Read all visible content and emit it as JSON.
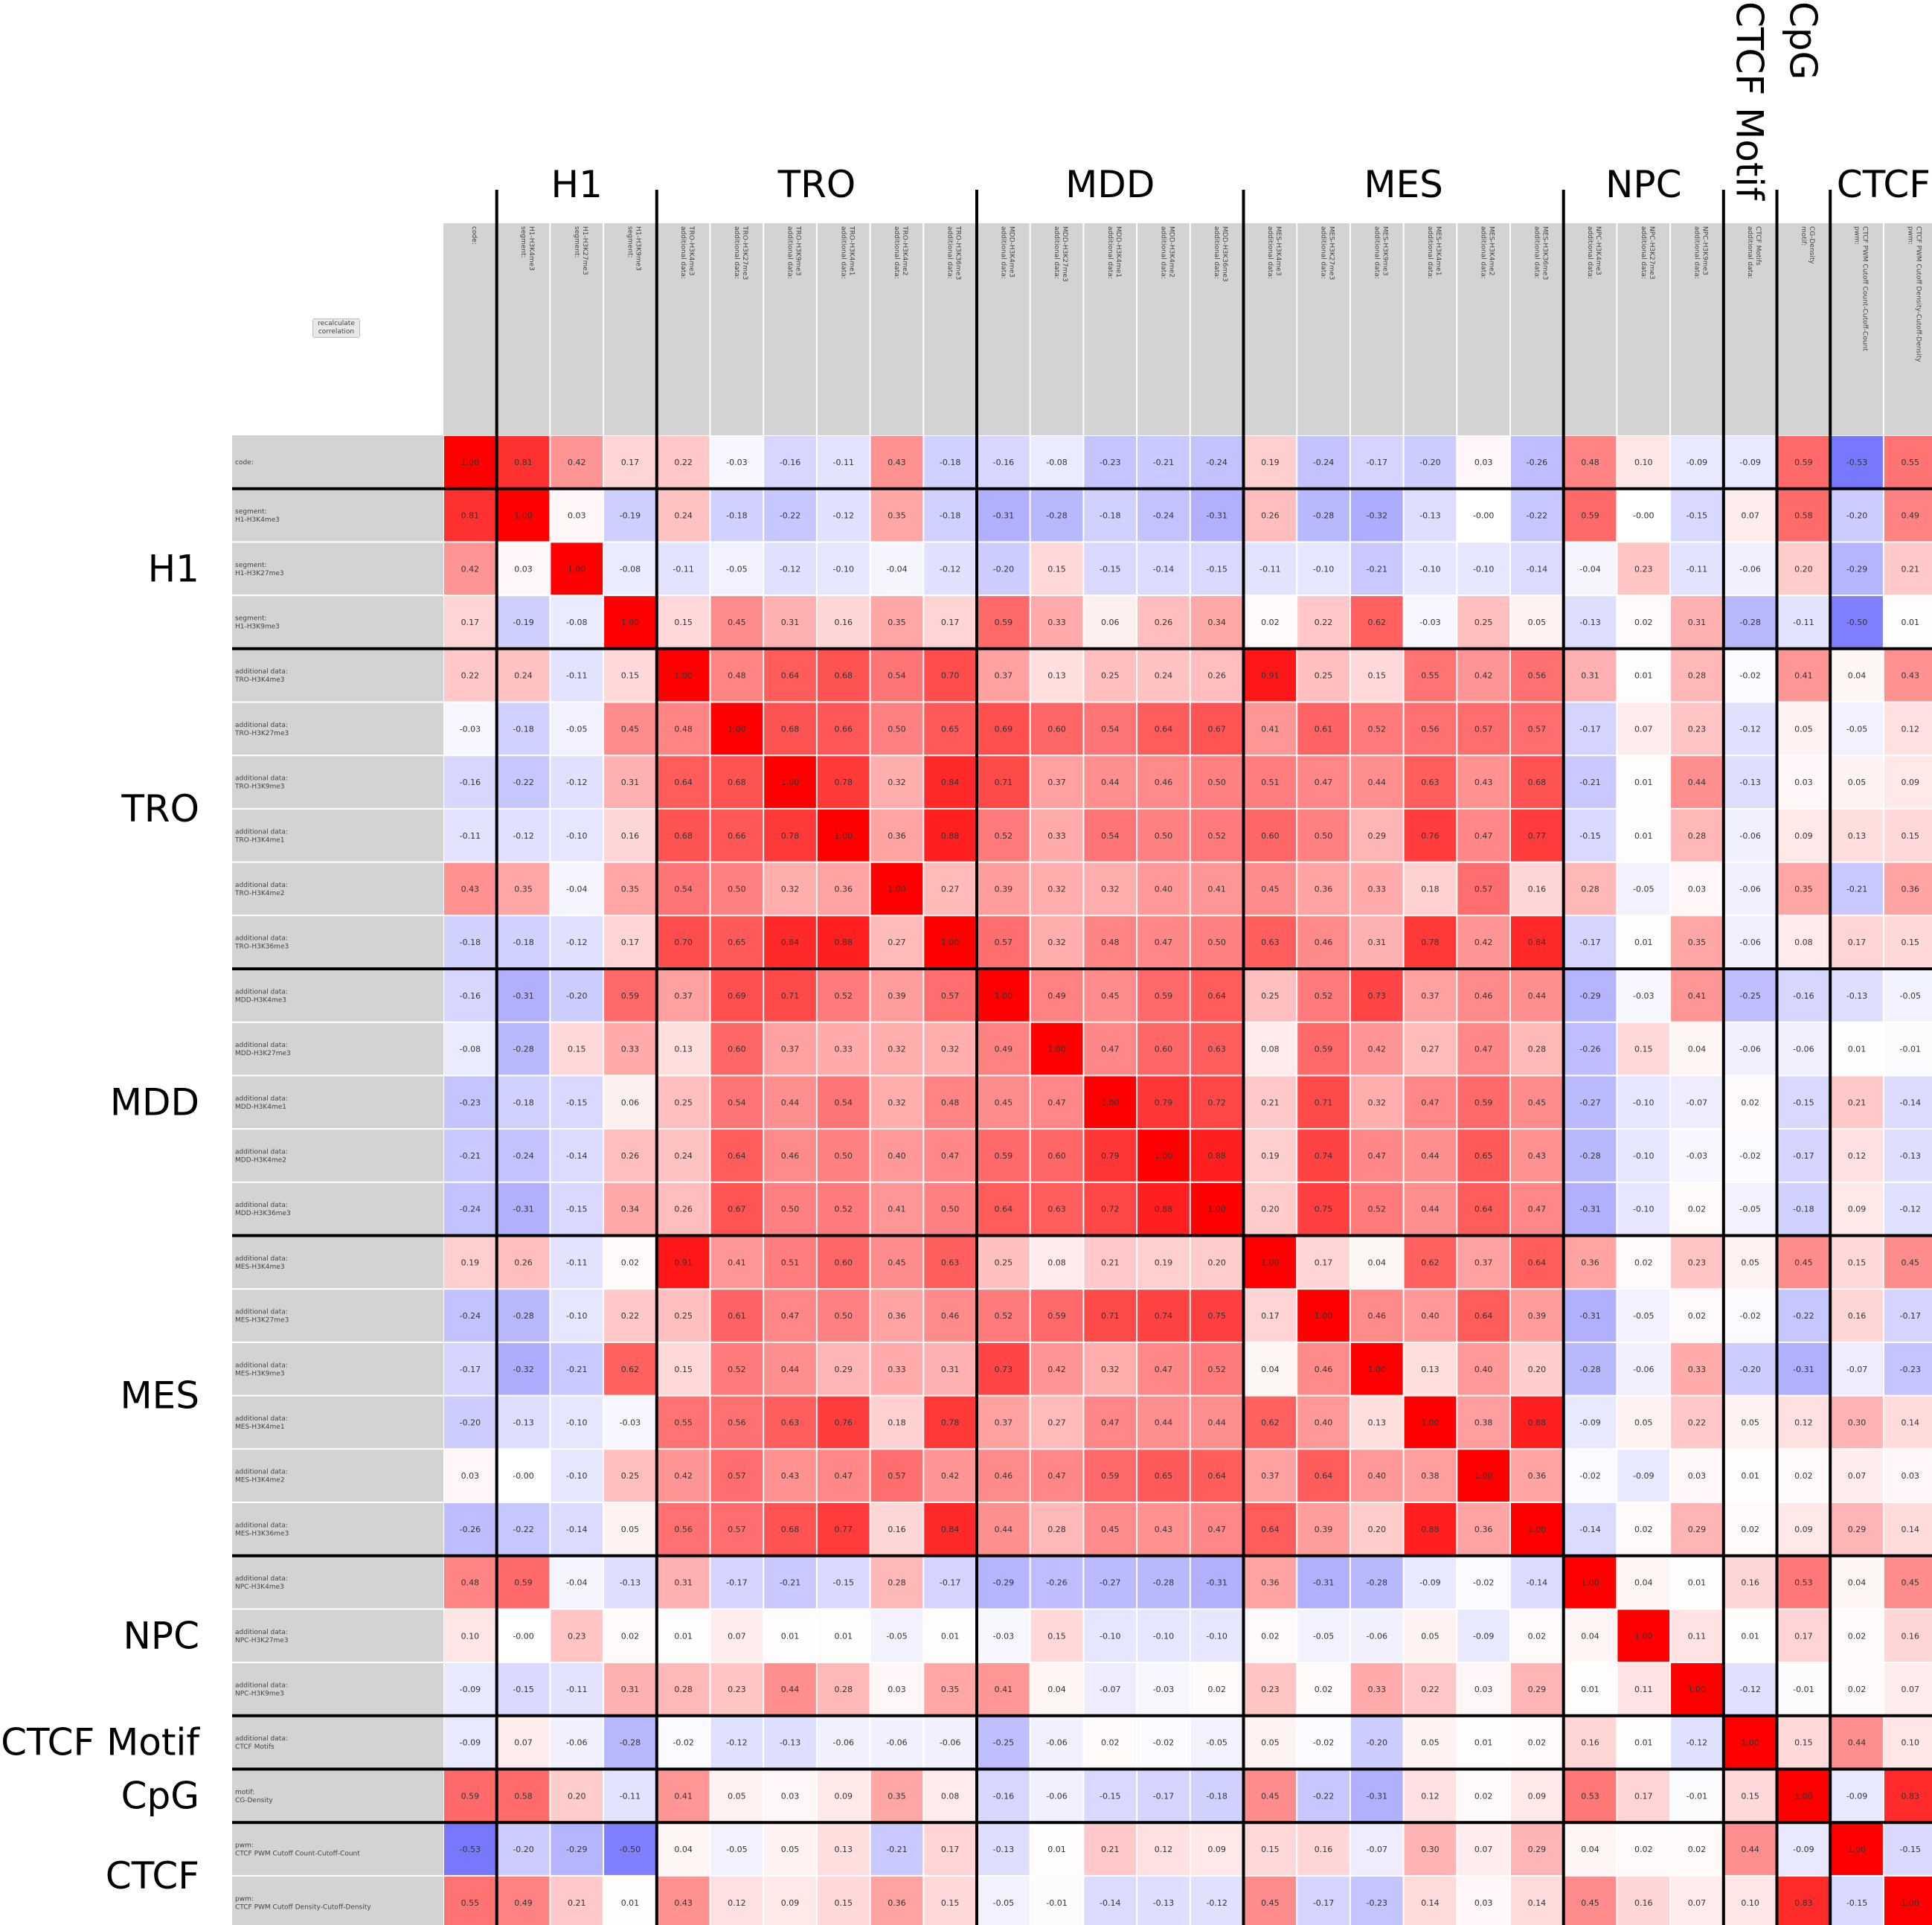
{
  "recalculate_button_label": "recalculate correlation",
  "colors": {
    "positive": "#ff0000",
    "negative": "#0000ff",
    "neutral": "#ffffff",
    "header_bg": "#d3d3d3",
    "grid_line": "#000000"
  },
  "chart_data": {
    "type": "heatmap",
    "title": "",
    "value_range": [
      -1,
      1
    ],
    "labels": [
      [
        "code:"
      ],
      [
        "segment:",
        "H1-H3K4me3"
      ],
      [
        "segment:",
        "H1-H3K27me3"
      ],
      [
        "segment:",
        "H1-H3K9me3"
      ],
      [
        "additional data:",
        "TRO-H3K4me3"
      ],
      [
        "additional data:",
        "TRO-H3K27me3"
      ],
      [
        "additional data:",
        "TRO-H3K9me3"
      ],
      [
        "additional data:",
        "TRO-H3K4me1"
      ],
      [
        "additional data:",
        "TRO-H3K4me2"
      ],
      [
        "additional data:",
        "TRO-H3K36me3"
      ],
      [
        "additional data:",
        "MDD-H3K4me3"
      ],
      [
        "additional data:",
        "MDD-H3K27me3"
      ],
      [
        "additional data:",
        "MDD-H3K4me1"
      ],
      [
        "additional data:",
        "MDD-H3K4me2"
      ],
      [
        "additional data:",
        "MDD-H3K36me3"
      ],
      [
        "additional data:",
        "MES-H3K4me3"
      ],
      [
        "additional data:",
        "MES-H3K27me3"
      ],
      [
        "additional data:",
        "MES-H3K9me3"
      ],
      [
        "additional data:",
        "MES-H3K4me1"
      ],
      [
        "additional data:",
        "MES-H3K4me2"
      ],
      [
        "additional data:",
        "MES-H3K36me3"
      ],
      [
        "additional data:",
        "NPC-H3K4me3"
      ],
      [
        "additional data:",
        "NPC-H3K27me3"
      ],
      [
        "additional data:",
        "NPC-H3K9me3"
      ],
      [
        "additional data:",
        "CTCF Motifs"
      ],
      [
        "motif:",
        "CG-Density"
      ],
      [
        "pwm:",
        "CTCF PWM Cutoff Count-Cutoff-Count"
      ],
      [
        "pwm:",
        "CTCF PWM Cutoff Density-Cutoff-Density"
      ]
    ],
    "groups": [
      {
        "name": "",
        "start": 0,
        "end": 0
      },
      {
        "name": "H1",
        "start": 1,
        "end": 3
      },
      {
        "name": "TRO",
        "start": 4,
        "end": 9
      },
      {
        "name": "MDD",
        "start": 10,
        "end": 14
      },
      {
        "name": "MES",
        "start": 15,
        "end": 20
      },
      {
        "name": "NPC",
        "start": 21,
        "end": 23
      },
      {
        "name": "CTCF Motif",
        "start": 24,
        "end": 24
      },
      {
        "name": "CpG",
        "start": 25,
        "end": 25
      },
      {
        "name": "CTCF",
        "start": 26,
        "end": 27
      }
    ],
    "matrix": [
      [
        1.0,
        0.81,
        0.42,
        0.17,
        0.22,
        -0.03,
        -0.16,
        -0.11,
        0.43,
        -0.18,
        -0.16,
        -0.08,
        -0.23,
        -0.21,
        -0.24,
        0.19,
        -0.24,
        -0.17,
        -0.2,
        0.03,
        -0.26,
        0.48,
        0.1,
        -0.09,
        -0.09,
        0.59,
        -0.53,
        0.55
      ],
      [
        0.81,
        1.0,
        0.03,
        -0.19,
        0.24,
        -0.18,
        -0.22,
        -0.12,
        0.35,
        -0.18,
        -0.31,
        -0.28,
        -0.18,
        -0.24,
        -0.31,
        0.26,
        -0.28,
        -0.32,
        -0.13,
        -0.0,
        -0.22,
        0.59,
        -0.0,
        -0.15,
        0.07,
        0.58,
        -0.2,
        0.49
      ],
      [
        0.42,
        0.03,
        1.0,
        -0.08,
        -0.11,
        -0.05,
        -0.12,
        -0.1,
        -0.04,
        -0.12,
        -0.2,
        0.15,
        -0.15,
        -0.14,
        -0.15,
        -0.11,
        -0.1,
        -0.21,
        -0.1,
        -0.1,
        -0.14,
        -0.04,
        0.23,
        -0.11,
        -0.06,
        0.2,
        -0.29,
        0.21
      ],
      [
        0.17,
        -0.19,
        -0.08,
        1.0,
        0.15,
        0.45,
        0.31,
        0.16,
        0.35,
        0.17,
        0.59,
        0.33,
        0.06,
        0.26,
        0.34,
        0.02,
        0.22,
        0.62,
        -0.03,
        0.25,
        0.05,
        -0.13,
        0.02,
        0.31,
        -0.28,
        -0.11,
        -0.5,
        0.01
      ],
      [
        0.22,
        0.24,
        -0.11,
        0.15,
        1.0,
        0.48,
        0.64,
        0.68,
        0.54,
        0.7,
        0.37,
        0.13,
        0.25,
        0.24,
        0.26,
        0.91,
        0.25,
        0.15,
        0.55,
        0.42,
        0.56,
        0.31,
        0.01,
        0.28,
        -0.02,
        0.41,
        0.04,
        0.43
      ],
      [
        -0.03,
        -0.18,
        -0.05,
        0.45,
        0.48,
        1.0,
        0.68,
        0.66,
        0.5,
        0.65,
        0.69,
        0.6,
        0.54,
        0.64,
        0.67,
        0.41,
        0.61,
        0.52,
        0.56,
        0.57,
        0.57,
        -0.17,
        0.07,
        0.23,
        -0.12,
        0.05,
        -0.05,
        0.12
      ],
      [
        -0.16,
        -0.22,
        -0.12,
        0.31,
        0.64,
        0.68,
        1.0,
        0.78,
        0.32,
        0.84,
        0.71,
        0.37,
        0.44,
        0.46,
        0.5,
        0.51,
        0.47,
        0.44,
        0.63,
        0.43,
        0.68,
        -0.21,
        0.01,
        0.44,
        -0.13,
        0.03,
        0.05,
        0.09
      ],
      [
        -0.11,
        -0.12,
        -0.1,
        0.16,
        0.68,
        0.66,
        0.78,
        1.0,
        0.36,
        0.88,
        0.52,
        0.33,
        0.54,
        0.5,
        0.52,
        0.6,
        0.5,
        0.29,
        0.76,
        0.47,
        0.77,
        -0.15,
        0.01,
        0.28,
        -0.06,
        0.09,
        0.13,
        0.15
      ],
      [
        0.43,
        0.35,
        -0.04,
        0.35,
        0.54,
        0.5,
        0.32,
        0.36,
        1.0,
        0.27,
        0.39,
        0.32,
        0.32,
        0.4,
        0.41,
        0.45,
        0.36,
        0.33,
        0.18,
        0.57,
        0.16,
        0.28,
        -0.05,
        0.03,
        -0.06,
        0.35,
        -0.21,
        0.36
      ],
      [
        -0.18,
        -0.18,
        -0.12,
        0.17,
        0.7,
        0.65,
        0.84,
        0.88,
        0.27,
        1.0,
        0.57,
        0.32,
        0.48,
        0.47,
        0.5,
        0.63,
        0.46,
        0.31,
        0.78,
        0.42,
        0.84,
        -0.17,
        0.01,
        0.35,
        -0.06,
        0.08,
        0.17,
        0.15
      ],
      [
        -0.16,
        -0.31,
        -0.2,
        0.59,
        0.37,
        0.69,
        0.71,
        0.52,
        0.39,
        0.57,
        1.0,
        0.49,
        0.45,
        0.59,
        0.64,
        0.25,
        0.52,
        0.73,
        0.37,
        0.46,
        0.44,
        -0.29,
        -0.03,
        0.41,
        -0.25,
        -0.16,
        -0.13,
        -0.05
      ],
      [
        -0.08,
        -0.28,
        0.15,
        0.33,
        0.13,
        0.6,
        0.37,
        0.33,
        0.32,
        0.32,
        0.49,
        1.0,
        0.47,
        0.6,
        0.63,
        0.08,
        0.59,
        0.42,
        0.27,
        0.47,
        0.28,
        -0.26,
        0.15,
        0.04,
        -0.06,
        -0.06,
        0.01,
        -0.01
      ],
      [
        -0.23,
        -0.18,
        -0.15,
        0.06,
        0.25,
        0.54,
        0.44,
        0.54,
        0.32,
        0.48,
        0.45,
        0.47,
        1.0,
        0.79,
        0.72,
        0.21,
        0.71,
        0.32,
        0.47,
        0.59,
        0.45,
        -0.27,
        -0.1,
        -0.07,
        0.02,
        -0.15,
        0.21,
        -0.14
      ],
      [
        -0.21,
        -0.24,
        -0.14,
        0.26,
        0.24,
        0.64,
        0.46,
        0.5,
        0.4,
        0.47,
        0.59,
        0.6,
        0.79,
        1.0,
        0.88,
        0.19,
        0.74,
        0.47,
        0.44,
        0.65,
        0.43,
        -0.28,
        -0.1,
        -0.03,
        -0.02,
        -0.17,
        0.12,
        -0.13
      ],
      [
        -0.24,
        -0.31,
        -0.15,
        0.34,
        0.26,
        0.67,
        0.5,
        0.52,
        0.41,
        0.5,
        0.64,
        0.63,
        0.72,
        0.88,
        1.0,
        0.2,
        0.75,
        0.52,
        0.44,
        0.64,
        0.47,
        -0.31,
        -0.1,
        0.02,
        -0.05,
        -0.18,
        0.09,
        -0.12
      ],
      [
        0.19,
        0.26,
        -0.11,
        0.02,
        0.91,
        0.41,
        0.51,
        0.6,
        0.45,
        0.63,
        0.25,
        0.08,
        0.21,
        0.19,
        0.2,
        1.0,
        0.17,
        0.04,
        0.62,
        0.37,
        0.64,
        0.36,
        0.02,
        0.23,
        0.05,
        0.45,
        0.15,
        0.45
      ],
      [
        -0.24,
        -0.28,
        -0.1,
        0.22,
        0.25,
        0.61,
        0.47,
        0.5,
        0.36,
        0.46,
        0.52,
        0.59,
        0.71,
        0.74,
        0.75,
        0.17,
        1.0,
        0.46,
        0.4,
        0.64,
        0.39,
        -0.31,
        -0.05,
        0.02,
        -0.02,
        -0.22,
        0.16,
        -0.17
      ],
      [
        -0.17,
        -0.32,
        -0.21,
        0.62,
        0.15,
        0.52,
        0.44,
        0.29,
        0.33,
        0.31,
        0.73,
        0.42,
        0.32,
        0.47,
        0.52,
        0.04,
        0.46,
        1.0,
        0.13,
        0.4,
        0.2,
        -0.28,
        -0.06,
        0.33,
        -0.2,
        -0.31,
        -0.07,
        -0.23
      ],
      [
        -0.2,
        -0.13,
        -0.1,
        -0.03,
        0.55,
        0.56,
        0.63,
        0.76,
        0.18,
        0.78,
        0.37,
        0.27,
        0.47,
        0.44,
        0.44,
        0.62,
        0.4,
        0.13,
        1.0,
        0.38,
        0.88,
        -0.09,
        0.05,
        0.22,
        0.05,
        0.12,
        0.3,
        0.14
      ],
      [
        0.03,
        -0.0,
        -0.1,
        0.25,
        0.42,
        0.57,
        0.43,
        0.47,
        0.57,
        0.42,
        0.46,
        0.47,
        0.59,
        0.65,
        0.64,
        0.37,
        0.64,
        0.4,
        0.38,
        1.0,
        0.36,
        -0.02,
        -0.09,
        0.03,
        0.01,
        0.02,
        0.07,
        0.03
      ],
      [
        -0.26,
        -0.22,
        -0.14,
        0.05,
        0.56,
        0.57,
        0.68,
        0.77,
        0.16,
        0.84,
        0.44,
        0.28,
        0.45,
        0.43,
        0.47,
        0.64,
        0.39,
        0.2,
        0.88,
        0.36,
        1.0,
        -0.14,
        0.02,
        0.29,
        0.02,
        0.09,
        0.29,
        0.14
      ],
      [
        0.48,
        0.59,
        -0.04,
        -0.13,
        0.31,
        -0.17,
        -0.21,
        -0.15,
        0.28,
        -0.17,
        -0.29,
        -0.26,
        -0.27,
        -0.28,
        -0.31,
        0.36,
        -0.31,
        -0.28,
        -0.09,
        -0.02,
        -0.14,
        1.0,
        0.04,
        0.01,
        0.16,
        0.53,
        0.04,
        0.45
      ],
      [
        0.1,
        -0.0,
        0.23,
        0.02,
        0.01,
        0.07,
        0.01,
        0.01,
        -0.05,
        0.01,
        -0.03,
        0.15,
        -0.1,
        -0.1,
        -0.1,
        0.02,
        -0.05,
        -0.06,
        0.05,
        -0.09,
        0.02,
        0.04,
        1.0,
        0.11,
        0.01,
        0.17,
        0.02,
        0.16
      ],
      [
        -0.09,
        -0.15,
        -0.11,
        0.31,
        0.28,
        0.23,
        0.44,
        0.28,
        0.03,
        0.35,
        0.41,
        0.04,
        -0.07,
        -0.03,
        0.02,
        0.23,
        0.02,
        0.33,
        0.22,
        0.03,
        0.29,
        0.01,
        0.11,
        1.0,
        -0.12,
        -0.01,
        0.02,
        0.07
      ],
      [
        -0.09,
        0.07,
        -0.06,
        -0.28,
        -0.02,
        -0.12,
        -0.13,
        -0.06,
        -0.06,
        -0.06,
        -0.25,
        -0.06,
        0.02,
        -0.02,
        -0.05,
        0.05,
        -0.02,
        -0.2,
        0.05,
        0.01,
        0.02,
        0.16,
        0.01,
        -0.12,
        1.0,
        0.15,
        0.44,
        0.1
      ],
      [
        0.59,
        0.58,
        0.2,
        -0.11,
        0.41,
        0.05,
        0.03,
        0.09,
        0.35,
        0.08,
        -0.16,
        -0.06,
        -0.15,
        -0.17,
        -0.18,
        0.45,
        -0.22,
        -0.31,
        0.12,
        0.02,
        0.09,
        0.53,
        0.17,
        -0.01,
        0.15,
        1.0,
        -0.09,
        0.83
      ],
      [
        -0.53,
        -0.2,
        -0.29,
        -0.5,
        0.04,
        -0.05,
        0.05,
        0.13,
        -0.21,
        0.17,
        -0.13,
        0.01,
        0.21,
        0.12,
        0.09,
        0.15,
        0.16,
        -0.07,
        0.3,
        0.07,
        0.29,
        0.04,
        0.02,
        0.02,
        0.44,
        -0.09,
        1.0,
        -0.15
      ],
      [
        0.55,
        0.49,
        0.21,
        0.01,
        0.43,
        0.12,
        0.09,
        0.15,
        0.36,
        0.15,
        -0.05,
        -0.01,
        -0.14,
        -0.13,
        -0.12,
        0.45,
        -0.17,
        -0.23,
        0.14,
        0.03,
        0.14,
        0.45,
        0.16,
        0.07,
        0.1,
        0.83,
        -0.15,
        1.0
      ]
    ]
  }
}
